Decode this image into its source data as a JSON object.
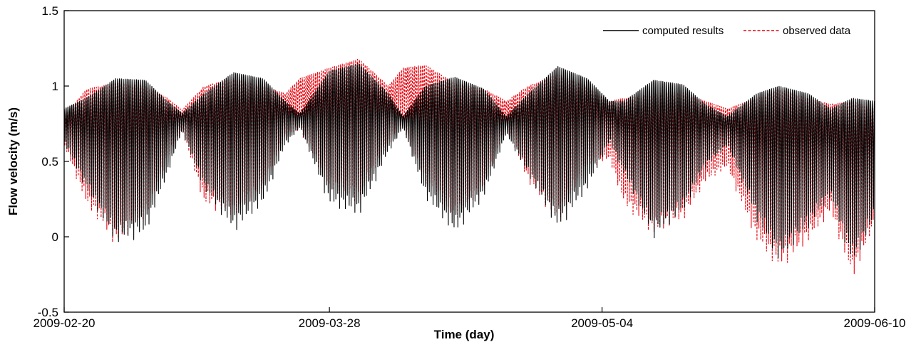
{
  "chart_data": {
    "type": "line",
    "title": "",
    "xlabel": "Time (day)",
    "ylabel": "Flow velocity (m/s)",
    "xlim": [
      "2009-02-20",
      "2009-06-10"
    ],
    "ylim": [
      -0.5,
      1.5
    ],
    "x_ticks": [
      "2009-02-20",
      "2009-03-28",
      "2009-05-04",
      "2009-06-10"
    ],
    "y_ticks": [
      "-0.5",
      "0",
      "0.5",
      "1",
      "1.5"
    ],
    "grid": false,
    "legend_position": "top-right",
    "series": [
      {
        "name": "computed results",
        "color": "#000000",
        "style": "solid",
        "tidal_period_hours": 12.42,
        "envelope": [
          {
            "date": "2009-02-20",
            "max": 0.85,
            "min": 0.62
          },
          {
            "date": "2009-02-23",
            "max": 0.92,
            "min": 0.3
          },
          {
            "date": "2009-02-27",
            "max": 1.05,
            "min": -0.06
          },
          {
            "date": "2009-03-03",
            "max": 1.04,
            "min": 0.0
          },
          {
            "date": "2009-03-06",
            "max": 0.9,
            "min": 0.4
          },
          {
            "date": "2009-03-08",
            "max": 0.82,
            "min": 0.7
          },
          {
            "date": "2009-03-11",
            "max": 0.95,
            "min": 0.3
          },
          {
            "date": "2009-03-15",
            "max": 1.09,
            "min": 0.02
          },
          {
            "date": "2009-03-19",
            "max": 1.05,
            "min": 0.2
          },
          {
            "date": "2009-03-22",
            "max": 0.9,
            "min": 0.6
          },
          {
            "date": "2009-03-24",
            "max": 0.82,
            "min": 0.72
          },
          {
            "date": "2009-03-28",
            "max": 1.1,
            "min": 0.2
          },
          {
            "date": "2009-04-01",
            "max": 1.15,
            "min": 0.12
          },
          {
            "date": "2009-04-05",
            "max": 0.95,
            "min": 0.55
          },
          {
            "date": "2009-04-07",
            "max": 0.8,
            "min": 0.72
          },
          {
            "date": "2009-04-10",
            "max": 1.0,
            "min": 0.25
          },
          {
            "date": "2009-04-14",
            "max": 1.06,
            "min": 0.0
          },
          {
            "date": "2009-04-18",
            "max": 0.98,
            "min": 0.25
          },
          {
            "date": "2009-04-21",
            "max": 0.8,
            "min": 0.68
          },
          {
            "date": "2009-04-24",
            "max": 0.95,
            "min": 0.4
          },
          {
            "date": "2009-04-28",
            "max": 1.13,
            "min": 0.03
          },
          {
            "date": "2009-05-02",
            "max": 1.05,
            "min": 0.3
          },
          {
            "date": "2009-05-05",
            "max": 0.9,
            "min": 0.62
          },
          {
            "date": "2009-05-07",
            "max": 0.9,
            "min": 0.4
          },
          {
            "date": "2009-05-11",
            "max": 1.04,
            "min": -0.02
          },
          {
            "date": "2009-05-15",
            "max": 1.01,
            "min": 0.15
          },
          {
            "date": "2009-05-18",
            "max": 0.88,
            "min": 0.45
          },
          {
            "date": "2009-05-21",
            "max": 0.8,
            "min": 0.6
          },
          {
            "date": "2009-05-25",
            "max": 0.95,
            "min": 0.1
          },
          {
            "date": "2009-05-28",
            "max": 1.0,
            "min": -0.18
          },
          {
            "date": "2009-06-01",
            "max": 0.95,
            "min": 0.05
          },
          {
            "date": "2009-06-04",
            "max": 0.85,
            "min": 0.25
          },
          {
            "date": "2009-06-07",
            "max": 0.92,
            "min": -0.2
          },
          {
            "date": "2009-06-10",
            "max": 0.9,
            "min": 0.1
          }
        ]
      },
      {
        "name": "observed data",
        "color": "#e8000b",
        "style": "dashed",
        "tidal_period_hours": 12.42,
        "envelope": [
          {
            "date": "2009-02-20",
            "max": 0.8,
            "min": 0.6
          },
          {
            "date": "2009-02-23",
            "max": 0.98,
            "min": 0.2
          },
          {
            "date": "2009-02-27",
            "max": 1.02,
            "min": -0.07
          },
          {
            "date": "2009-03-03",
            "max": 1.0,
            "min": 0.1
          },
          {
            "date": "2009-03-06",
            "max": 0.92,
            "min": 0.5
          },
          {
            "date": "2009-03-08",
            "max": 0.84,
            "min": 0.7
          },
          {
            "date": "2009-03-11",
            "max": 1.0,
            "min": 0.2
          },
          {
            "date": "2009-03-15",
            "max": 1.05,
            "min": 0.12
          },
          {
            "date": "2009-03-19",
            "max": 1.0,
            "min": 0.3
          },
          {
            "date": "2009-03-22",
            "max": 0.95,
            "min": 0.65
          },
          {
            "date": "2009-03-24",
            "max": 1.05,
            "min": 0.7
          },
          {
            "date": "2009-03-28",
            "max": 1.12,
            "min": 0.3
          },
          {
            "date": "2009-04-01",
            "max": 1.18,
            "min": 0.22
          },
          {
            "date": "2009-04-05",
            "max": 1.0,
            "min": 0.6
          },
          {
            "date": "2009-04-07",
            "max": 1.12,
            "min": 0.72
          },
          {
            "date": "2009-04-10",
            "max": 1.14,
            "min": 0.35
          },
          {
            "date": "2009-04-14",
            "max": 1.02,
            "min": 0.1
          },
          {
            "date": "2009-04-18",
            "max": 0.98,
            "min": 0.3
          },
          {
            "date": "2009-04-21",
            "max": 0.9,
            "min": 0.72
          },
          {
            "date": "2009-04-24",
            "max": 1.0,
            "min": 0.35
          },
          {
            "date": "2009-04-28",
            "max": 1.08,
            "min": 0.08
          },
          {
            "date": "2009-05-02",
            "max": 1.0,
            "min": 0.45
          },
          {
            "date": "2009-05-05",
            "max": 0.9,
            "min": 0.5
          },
          {
            "date": "2009-05-07",
            "max": 0.92,
            "min": 0.2
          },
          {
            "date": "2009-05-11",
            "max": 0.95,
            "min": 0.0
          },
          {
            "date": "2009-05-15",
            "max": 0.96,
            "min": 0.1
          },
          {
            "date": "2009-05-18",
            "max": 0.9,
            "min": 0.35
          },
          {
            "date": "2009-05-21",
            "max": 0.85,
            "min": 0.45
          },
          {
            "date": "2009-05-25",
            "max": 0.92,
            "min": -0.05
          },
          {
            "date": "2009-05-28",
            "max": 0.98,
            "min": -0.23
          },
          {
            "date": "2009-06-01",
            "max": 0.92,
            "min": -0.05
          },
          {
            "date": "2009-06-04",
            "max": 0.88,
            "min": 0.15
          },
          {
            "date": "2009-06-07",
            "max": 0.9,
            "min": -0.3
          },
          {
            "date": "2009-06-10",
            "max": 0.85,
            "min": 0.05
          }
        ]
      }
    ]
  }
}
